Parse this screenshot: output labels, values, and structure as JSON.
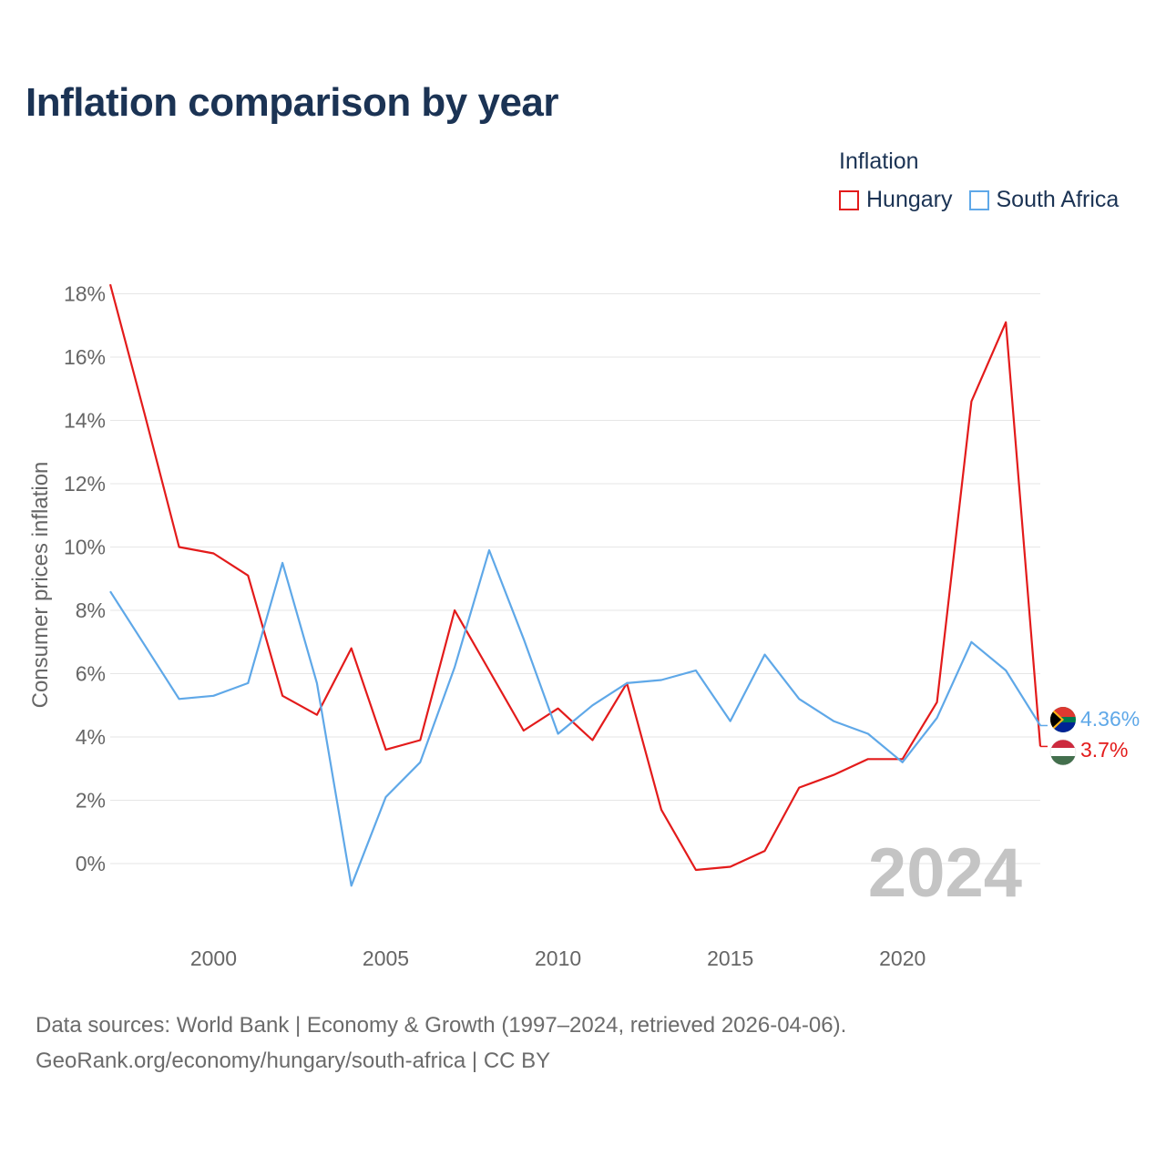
{
  "title": "Inflation comparison by year",
  "legend": {
    "title": "Inflation",
    "items": [
      {
        "label": "Hungary",
        "color": "#e31b1b"
      },
      {
        "label": "South Africa",
        "color": "#5fa8e8"
      }
    ]
  },
  "footer": {
    "line1": "Data sources: World Bank | Economy & Growth (1997–2024, retrieved 2026-04-06).",
    "line2": "GeoRank.org/economy/hungary/south-africa | CC BY"
  },
  "chart_data": {
    "type": "line",
    "title": "Inflation comparison by year",
    "xlabel": "",
    "ylabel": "Consumer prices inflation",
    "xlim": [
      1997,
      2024
    ],
    "ylim": [
      -2,
      18
    ],
    "yticks": [
      0,
      2,
      4,
      6,
      8,
      10,
      12,
      14,
      16,
      18
    ],
    "ytick_labels": [
      "0%",
      "2%",
      "4%",
      "6%",
      "8%",
      "10%",
      "12%",
      "14%",
      "16%",
      "18%"
    ],
    "xticks": [
      2000,
      2005,
      2010,
      2015,
      2020
    ],
    "xtick_labels": [
      "2000",
      "2005",
      "2010",
      "2015",
      "2020"
    ],
    "grid": true,
    "year_label": "2024",
    "x": [
      1997,
      1998,
      1999,
      2000,
      2001,
      2002,
      2003,
      2004,
      2005,
      2006,
      2007,
      2008,
      2009,
      2010,
      2011,
      2012,
      2013,
      2014,
      2015,
      2016,
      2017,
      2018,
      2019,
      2020,
      2021,
      2022,
      2023,
      2024
    ],
    "series": [
      {
        "name": "Hungary",
        "color": "#e31b1b",
        "end_label": "3.7%",
        "values": [
          18.3,
          14.2,
          10.0,
          9.8,
          9.1,
          5.3,
          4.7,
          6.8,
          3.6,
          3.9,
          8.0,
          6.1,
          4.2,
          4.9,
          3.9,
          5.7,
          1.7,
          -0.2,
          -0.1,
          0.4,
          2.4,
          2.8,
          3.3,
          3.3,
          5.1,
          14.6,
          17.1,
          3.7
        ]
      },
      {
        "name": "South Africa",
        "color": "#5fa8e8",
        "end_label": "4.36%",
        "values": [
          8.6,
          6.9,
          5.2,
          5.3,
          5.7,
          9.5,
          5.7,
          -0.7,
          2.1,
          3.2,
          6.2,
          9.9,
          7.1,
          4.1,
          5.0,
          5.7,
          5.8,
          6.1,
          4.5,
          6.6,
          5.2,
          4.5,
          4.1,
          3.2,
          4.6,
          7.0,
          6.1,
          4.36
        ]
      }
    ]
  }
}
